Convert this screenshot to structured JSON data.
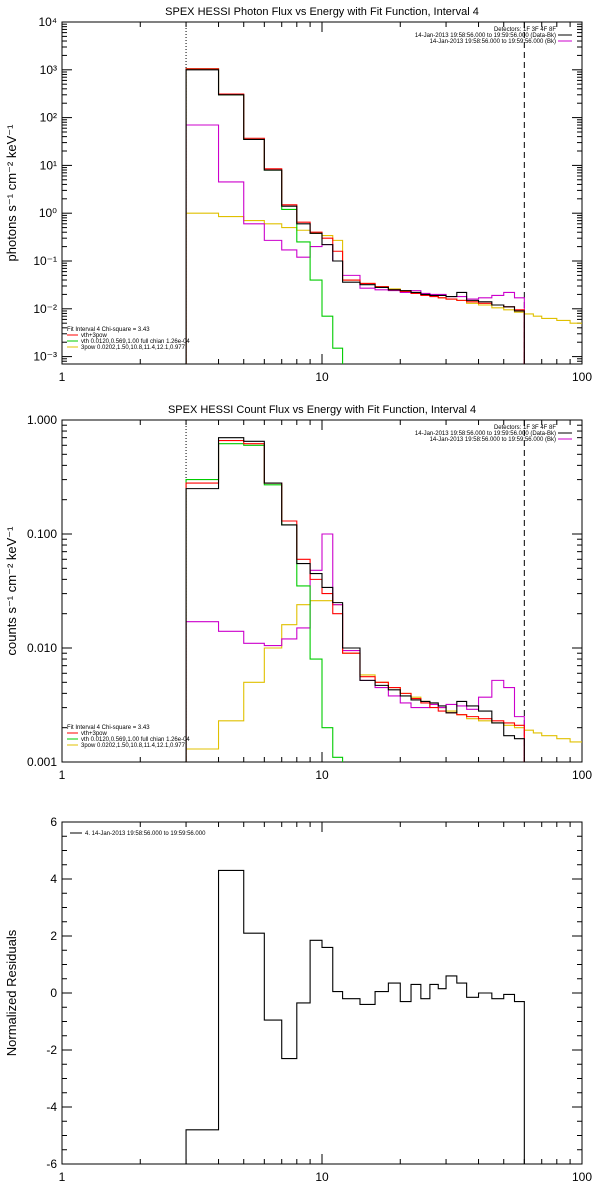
{
  "chart_data": [
    {
      "type": "line",
      "title": "SPEX HESSI Photon Flux vs Energy with Fit Function, Interval 4",
      "xlabel": "",
      "ylabel": "photons s⁻¹ cm⁻² keV⁻¹",
      "xscale": "log",
      "yscale": "log",
      "xlim": [
        1,
        100
      ],
      "ylim": [
        0.0007,
        10000
      ],
      "xticks": [
        {
          "v": 1,
          "label": "1"
        },
        {
          "v": 10,
          "label": "10"
        },
        {
          "v": 100,
          "label": "100"
        }
      ],
      "yticks": [
        {
          "v": 0.001,
          "label": "10⁻³"
        },
        {
          "v": 0.01,
          "label": "10⁻²"
        },
        {
          "v": 0.1,
          "label": "10⁻¹"
        },
        {
          "v": 1,
          "label": "10⁰"
        },
        {
          "v": 10,
          "label": "10¹"
        },
        {
          "v": 100,
          "label": "10²"
        },
        {
          "v": 1000,
          "label": "10³"
        },
        {
          "v": 10000,
          "label": "10⁴"
        }
      ],
      "vlines": [
        {
          "x": 3,
          "style": "dotted"
        },
        {
          "x": 60,
          "style": "dashed"
        }
      ],
      "legend_header": [
        "Detectors: 1F 3F 4F 8F",
        "14-Jan-2013 19:58:56.000 to 19:59:56.000 (Data-Bk)",
        "14-Jan-2013 19:58:56.000 to 19:59:56.000 (Bk)"
      ],
      "fit_legend": [
        "Fit Interval  4    Chi-square = 3.43",
        "vth+3pow",
        "vth 0.0120,0.569,1.00  full chian 1.26e-04",
        "3pow 0.0202,1.50,10.8,11.4,12.1,0.977"
      ],
      "colors": {
        "data": "#000000",
        "total": "#ff0000",
        "vth": "#00cc00",
        "pow": "#e0c000",
        "bk": "#cc00cc"
      },
      "edges": [
        3,
        4,
        5,
        6,
        7,
        8,
        9,
        10,
        11,
        12,
        14,
        16,
        18,
        20,
        22,
        24,
        26,
        28,
        30,
        33,
        36,
        40,
        45,
        50,
        55,
        60,
        65,
        70,
        80,
        90,
        100
      ],
      "series": [
        {
          "name": "",
          "role": "data",
          "values": [
            1000,
            300,
            35,
            8,
            1.4,
            0.6,
            0.38,
            0.22,
            0.1,
            0.036,
            0.032,
            0.028,
            0.025,
            0.024,
            0.022,
            0.02,
            0.019,
            0.019,
            0.018,
            0.022,
            0.015,
            0.014,
            0.012,
            0.011,
            0.009
          ]
        },
        {
          "name": "",
          "role": "total",
          "values": [
            1050,
            310,
            37,
            8.5,
            1.5,
            0.65,
            0.4,
            0.3,
            0.16,
            0.04,
            0.034,
            0.029,
            0.025,
            0.023,
            0.021,
            0.019,
            0.018,
            0.017,
            0.016,
            0.015,
            0.014,
            0.013,
            0.012,
            0.011,
            0.0095
          ]
        },
        {
          "name": "",
          "role": "vth",
          "values": [
            1050,
            300,
            35,
            8,
            1.2,
            0.25,
            0.04,
            0.007,
            0.0015,
            0.0005
          ]
        },
        {
          "name": "",
          "role": "pow",
          "values": [
            1.0,
            0.85,
            0.7,
            0.6,
            0.5,
            0.44,
            0.38,
            0.34,
            0.27,
            0.04,
            0.034,
            0.029,
            0.026,
            0.024,
            0.022,
            0.02,
            0.019,
            0.017,
            0.016,
            0.015,
            0.013,
            0.012,
            0.0105,
            0.0095,
            0.0085,
            0.0078,
            0.007,
            0.0063,
            0.0057,
            0.005
          ]
        },
        {
          "name": "",
          "role": "bk",
          "values": [
            70,
            4.5,
            0.6,
            0.27,
            0.17,
            0.12,
            0.2,
            0.22,
            0.1,
            0.05,
            0.027,
            0.025,
            0.024,
            0.022,
            0.024,
            0.021,
            0.02,
            0.02,
            0.018,
            0.018,
            0.016,
            0.017,
            0.019,
            0.022,
            0.017
          ]
        }
      ]
    },
    {
      "type": "line",
      "title": "SPEX HESSI Count Flux vs Energy with Fit Function, Interval 4",
      "xlabel": "",
      "ylabel": "counts s⁻¹ cm⁻² keV⁻¹",
      "xscale": "log",
      "yscale": "log",
      "xlim": [
        1,
        100
      ],
      "ylim": [
        0.001,
        1
      ],
      "xticks": [
        {
          "v": 1,
          "label": "1"
        },
        {
          "v": 10,
          "label": "10"
        },
        {
          "v": 100,
          "label": "100"
        }
      ],
      "yticks": [
        {
          "v": 0.001,
          "label": "0.001"
        },
        {
          "v": 0.01,
          "label": "0.010"
        },
        {
          "v": 0.1,
          "label": "0.100"
        },
        {
          "v": 1,
          "label": "1.000"
        }
      ],
      "vlines": [
        {
          "x": 3,
          "style": "dotted"
        },
        {
          "x": 60,
          "style": "dashed"
        }
      ],
      "legend_header": [
        "Detectors: 1F 3F 4F 8F",
        "14-Jan-2013 19:58:56.000 to 19:59:56.000 (Data-Bk)",
        "14-Jan-2013 19:58:56.000 to 19:59:56.000 (Bk)"
      ],
      "fit_legend": [
        "Fit Interval  4    Chi-square = 3.43",
        "vth+3pow",
        "vth 0.0120,0.569,1.00  full chian 1.26e-04",
        "3pow 0.0202,1.50,10.8,11.4,12.1,0.977"
      ],
      "colors": {
        "data": "#000000",
        "total": "#ff0000",
        "vth": "#00cc00",
        "pow": "#e0c000",
        "bk": "#cc00cc"
      },
      "edges": [
        3,
        4,
        5,
        6,
        7,
        8,
        9,
        10,
        11,
        12,
        14,
        16,
        18,
        20,
        22,
        24,
        26,
        28,
        30,
        33,
        36,
        40,
        45,
        50,
        55,
        60,
        65,
        70,
        80,
        90,
        100
      ],
      "series": [
        {
          "name": "",
          "role": "data",
          "values": [
            0.25,
            0.7,
            0.65,
            0.28,
            0.12,
            0.055,
            0.045,
            0.034,
            0.025,
            0.01,
            0.0052,
            0.0047,
            0.0043,
            0.0038,
            0.0035,
            0.0034,
            0.0033,
            0.0031,
            0.0027,
            0.0034,
            0.0031,
            0.0028,
            0.0022,
            0.0017,
            0.0016
          ]
        },
        {
          "name": "",
          "role": "total",
          "values": [
            0.28,
            0.66,
            0.62,
            0.28,
            0.13,
            0.06,
            0.04,
            0.03,
            0.02,
            0.009,
            0.0056,
            0.005,
            0.0045,
            0.004,
            0.0036,
            0.0033,
            0.003,
            0.0028,
            0.0027,
            0.0026,
            0.0025,
            0.0024,
            0.0023,
            0.0022,
            0.0021
          ]
        },
        {
          "name": "",
          "role": "vth",
          "values": [
            0.3,
            0.62,
            0.6,
            0.27,
            0.12,
            0.035,
            0.008,
            0.002,
            0.0011,
            0.0008
          ]
        },
        {
          "name": "",
          "role": "pow",
          "values": [
            0.0013,
            0.0023,
            0.005,
            0.01,
            0.016,
            0.024,
            0.026,
            0.026,
            0.024,
            0.009,
            0.0058,
            0.005,
            0.0045,
            0.004,
            0.0037,
            0.0034,
            0.0032,
            0.003,
            0.0028,
            0.0026,
            0.0024,
            0.0023,
            0.0022,
            0.0021,
            0.002,
            0.0019,
            0.0018,
            0.0017,
            0.0016,
            0.0015
          ]
        },
        {
          "name": "",
          "role": "bk",
          "values": [
            0.017,
            0.014,
            0.011,
            0.0105,
            0.012,
            0.015,
            0.048,
            0.1,
            0.024,
            0.0095,
            0.0052,
            0.0045,
            0.0038,
            0.0033,
            0.003,
            0.003,
            0.0032,
            0.003,
            0.0032,
            0.0031,
            0.0029,
            0.0037,
            0.0052,
            0.0045,
            0.0025
          ]
        }
      ]
    },
    {
      "type": "line",
      "title": "",
      "xlabel": "",
      "ylabel": "Normalized Residuals",
      "xscale": "log",
      "yscale": "linear",
      "xlim": [
        1,
        100
      ],
      "ylim": [
        -6,
        6
      ],
      "xticks": [
        {
          "v": 1,
          "label": "1"
        },
        {
          "v": 10,
          "label": "10"
        },
        {
          "v": 100,
          "label": "100"
        }
      ],
      "yticks": [
        {
          "v": -6,
          "label": "-6"
        },
        {
          "v": -4,
          "label": "-4"
        },
        {
          "v": -2,
          "label": "-2"
        },
        {
          "v": 0,
          "label": "0"
        },
        {
          "v": 2,
          "label": "2"
        },
        {
          "v": 4,
          "label": "4"
        },
        {
          "v": 6,
          "label": "6"
        }
      ],
      "legend": [
        "4. 14-Jan-2013 19:58:56.000 to 19:59:56.000"
      ],
      "edges": [
        3,
        4,
        5,
        6,
        7,
        8,
        9,
        10,
        11,
        12,
        14,
        16,
        18,
        20,
        22,
        24,
        26,
        28,
        30,
        33,
        36,
        40,
        45,
        50,
        55,
        60
      ],
      "series": [
        {
          "name": "4. 14-Jan-2013 19:58:56.000 to 19:59:56.000",
          "role": "data",
          "values": [
            -4.8,
            4.3,
            2.1,
            -0.95,
            -2.3,
            -0.35,
            1.85,
            1.6,
            0.05,
            -0.2,
            -0.4,
            0.05,
            0.35,
            -0.3,
            0.3,
            -0.2,
            0.3,
            0.15,
            0.6,
            0.35,
            -0.15,
            0.0,
            -0.2,
            -0.05,
            -0.3
          ]
        }
      ]
    }
  ]
}
